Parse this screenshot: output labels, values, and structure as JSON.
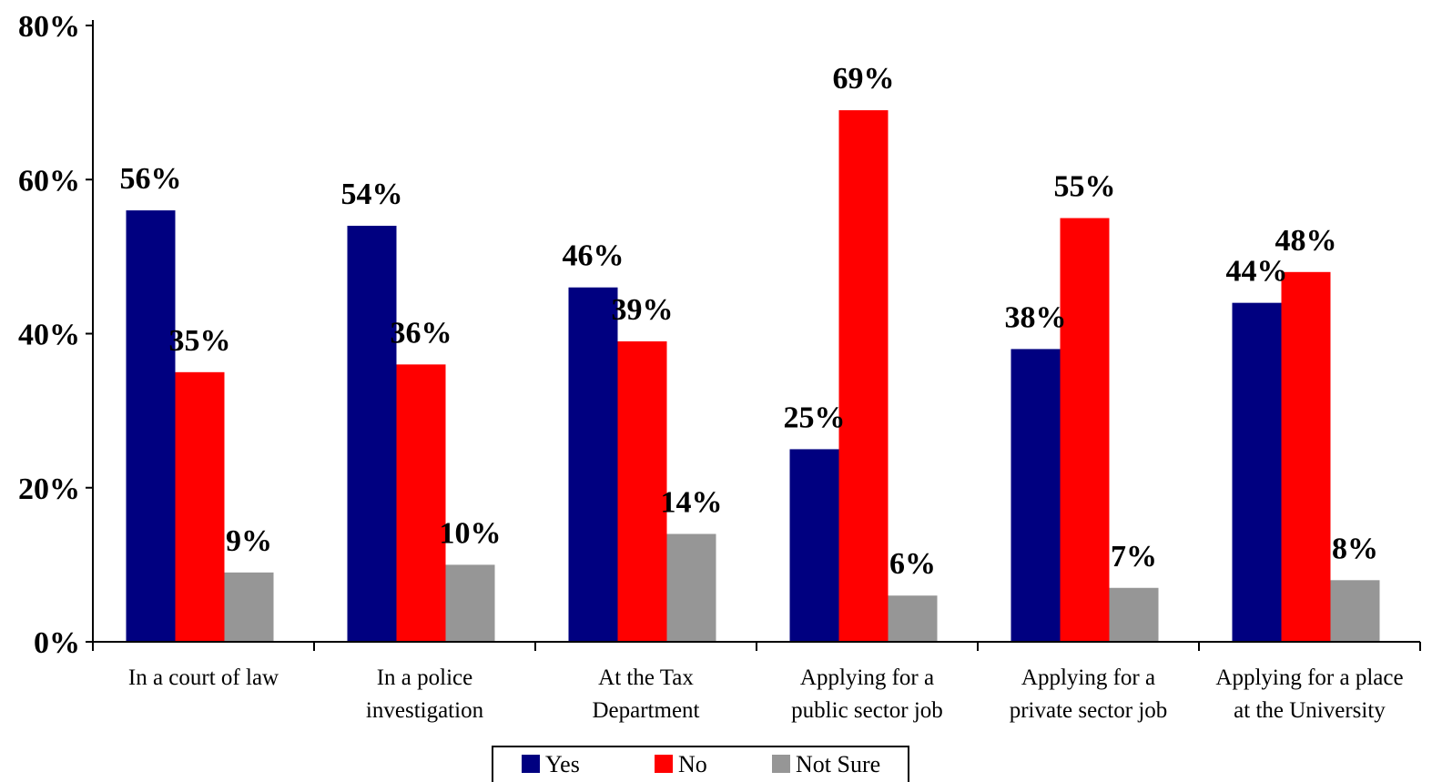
{
  "chart_data": {
    "type": "bar",
    "categories": [
      [
        "In a court of law"
      ],
      [
        "In a police",
        "investigation"
      ],
      [
        "At the Tax",
        "Department"
      ],
      [
        "Applying for a",
        "public sector job"
      ],
      [
        "Applying for a",
        "private sector job"
      ],
      [
        "Applying for a place",
        "at the University"
      ]
    ],
    "series": [
      {
        "name": "Yes",
        "color": "#000080",
        "values": [
          56,
          54,
          46,
          25,
          38,
          44
        ]
      },
      {
        "name": "No",
        "color": "#ff0000",
        "values": [
          35,
          36,
          39,
          69,
          55,
          48
        ]
      },
      {
        "name": "Not Sure",
        "color": "#969696",
        "values": [
          9,
          10,
          14,
          6,
          7,
          8
        ]
      }
    ],
    "data_labels": [
      [
        "56%",
        "54%",
        "46%",
        "25%",
        "38%",
        "44%"
      ],
      [
        "35%",
        "36%",
        "39%",
        "69%",
        "55%",
        "48%"
      ],
      [
        "9%",
        "10%",
        "14%",
        "6%",
        "7%",
        "8%"
      ]
    ],
    "ylim": [
      0,
      80
    ],
    "yticks": [
      0,
      20,
      40,
      60,
      80
    ],
    "ytick_labels": [
      "0%",
      "20%",
      "40%",
      "60%",
      "80%"
    ],
    "legend_position": "bottom",
    "grid": false
  }
}
